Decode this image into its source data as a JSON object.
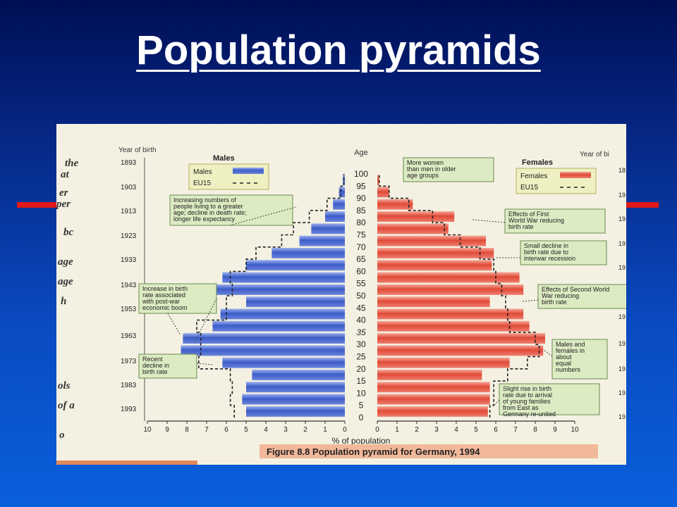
{
  "slide": {
    "title": "Population pyramids",
    "accent_color": "#e01818",
    "background_color": "#0a4bc2"
  },
  "page_fragments": [
    "the",
    "at",
    "er",
    "per",
    "bc",
    "age",
    "age",
    "h",
    "ols",
    "of a",
    "o"
  ],
  "chart_data": {
    "type": "bar",
    "orientation": "horizontal-pyramid",
    "figure_caption": "Figure 8.8  Population pyramid for Germany, 1994",
    "xlabel": "% of population",
    "age_axis_label": "Age",
    "left_header": "Males",
    "right_header": "Females",
    "left_year_label": "Year of birth",
    "right_year_label": "Year of bi",
    "age_ticks": [
      "100",
      "95",
      "90",
      "85",
      "80",
      "75",
      "70",
      "65",
      "60",
      "55",
      "50",
      "45",
      "40",
      "35",
      "30",
      "25",
      "20",
      "15",
      "10",
      "5",
      "0"
    ],
    "birth_years": [
      "1893",
      "1903",
      "1913",
      "1923",
      "1933",
      "1943",
      "1953",
      "1963",
      "1973",
      "1983",
      "1993"
    ],
    "right_birth_years": [
      "18",
      "19",
      "19",
      "19",
      "19",
      "19",
      "19",
      "19",
      "19",
      "19",
      "19"
    ],
    "x_ticks_left": [
      "10",
      "9",
      "8",
      "7",
      "6",
      "5",
      "4",
      "3",
      "2",
      "1",
      "0"
    ],
    "x_ticks_right": [
      "0",
      "1",
      "2",
      "3",
      "4",
      "5",
      "6",
      "7",
      "8",
      "9",
      "10"
    ],
    "xlim": [
      0,
      10
    ],
    "age_groups": [
      "0-4",
      "5-9",
      "10-14",
      "15-19",
      "20-24",
      "25-29",
      "30-34",
      "35-39",
      "40-44",
      "45-49",
      "50-54",
      "55-59",
      "60-64",
      "65-69",
      "70-74",
      "75-79",
      "80-84",
      "85-89",
      "90-94",
      "95-99"
    ],
    "series": [
      {
        "name": "Males",
        "color": "#4f6fd0",
        "values": [
          5.0,
          5.2,
          5.0,
          4.7,
          6.2,
          8.3,
          8.2,
          6.7,
          6.3,
          5.0,
          6.6,
          6.2,
          5.0,
          3.7,
          2.3,
          1.7,
          1.0,
          0.6,
          0.3,
          0.1
        ]
      },
      {
        "name": "Females",
        "color": "#e85848",
        "values": [
          5.6,
          5.7,
          5.7,
          5.3,
          6.7,
          8.4,
          8.5,
          7.7,
          7.4,
          5.7,
          7.4,
          7.2,
          5.8,
          5.9,
          5.5,
          3.6,
          3.9,
          1.8,
          0.6,
          0.1
        ]
      },
      {
        "name": "EU15",
        "style": "dashed",
        "values_males": [
          5.6,
          5.8,
          5.7,
          5.8,
          7.4,
          7.3,
          7.3,
          7.5,
          6.0,
          6.0,
          5.7,
          5.8,
          5.0,
          4.5,
          3.2,
          2.6,
          1.8,
          0.9,
          0.2,
          0.05
        ],
        "values_females": [
          5.7,
          5.9,
          5.9,
          6.6,
          7.6,
          8.2,
          8.0,
          6.7,
          6.6,
          6.5,
          6.3,
          6.0,
          5.9,
          5.2,
          4.2,
          3.4,
          2.8,
          1.6,
          0.6,
          0.1
        ]
      }
    ],
    "legend": {
      "left": [
        {
          "label": "Males",
          "swatch": "bar-blue"
        },
        {
          "label": "EU15",
          "swatch": "dash"
        }
      ],
      "right": [
        {
          "label": "Females",
          "swatch": "bar-red"
        },
        {
          "label": "EU15",
          "swatch": "dash"
        }
      ]
    },
    "annotations": [
      {
        "text": [
          "More women",
          "than men in older",
          "age groups"
        ]
      },
      {
        "text": [
          "Increasing numbers of",
          "people living to a greater",
          "age; decline in death rate;",
          "longer life expectancy"
        ]
      },
      {
        "text": [
          "Effects of First",
          "World War reducing",
          "birth rate"
        ]
      },
      {
        "text": [
          "Small decline in",
          "birth rate due to",
          "interwar recession"
        ]
      },
      {
        "text": [
          "Increase in birth",
          "rate associated",
          "with post-war",
          "economic boom"
        ]
      },
      {
        "text": [
          "Effects of Second World",
          "War reducing",
          "birth rate"
        ]
      },
      {
        "text": [
          "Males and",
          "females in",
          "about",
          "equal",
          "numbers"
        ]
      },
      {
        "text": [
          "Recent",
          "decline in",
          "birth rate"
        ]
      },
      {
        "text": [
          "Slight rise in birth",
          "rate due to arrival",
          "of young families",
          "from East as",
          "Germany re-united"
        ]
      }
    ]
  }
}
